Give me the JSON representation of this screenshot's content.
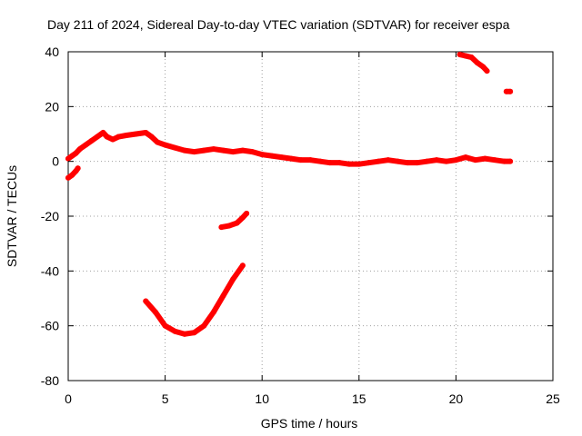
{
  "chart_data": {
    "type": "scatter",
    "title": "Day 211 of 2024, Sidereal Day-to-day VTEC variation (SDTVAR) for receiver espa",
    "xlabel": "GPS time / hours",
    "ylabel": "SDTVAR / TECUs",
    "xlim": [
      0,
      25
    ],
    "ylim": [
      -80,
      40
    ],
    "x_ticks": [
      0,
      5,
      10,
      15,
      20,
      25
    ],
    "y_ticks": [
      -80,
      -60,
      -40,
      -20,
      0,
      20,
      40
    ],
    "x_tick_labels": [
      "0",
      "5",
      "10",
      "15",
      "20",
      "25"
    ],
    "y_tick_labels": [
      "-80",
      "-60",
      "-40",
      "-20",
      "0",
      "20",
      "40"
    ],
    "grid": true,
    "legend": "none",
    "colors": {
      "series": "#ff0000",
      "grid": "#a0a0a0",
      "axis": "#000000"
    },
    "series": [
      {
        "name": "main-trace",
        "points": [
          [
            0.0,
            1.0
          ],
          [
            0.2,
            2.0
          ],
          [
            0.4,
            3.0
          ],
          [
            0.6,
            4.5
          ],
          [
            0.9,
            6.0
          ],
          [
            1.2,
            7.5
          ],
          [
            1.5,
            9.0
          ],
          [
            1.8,
            10.5
          ],
          [
            2.0,
            9.0
          ],
          [
            2.3,
            8.0
          ],
          [
            2.6,
            9.0
          ],
          [
            3.0,
            9.5
          ],
          [
            3.5,
            10.0
          ],
          [
            4.0,
            10.5
          ],
          [
            4.3,
            9.0
          ],
          [
            4.6,
            7.0
          ],
          [
            5.0,
            6.0
          ],
          [
            5.5,
            5.0
          ],
          [
            6.0,
            4.0
          ],
          [
            6.5,
            3.5
          ],
          [
            7.0,
            4.0
          ],
          [
            7.5,
            4.5
          ],
          [
            8.0,
            4.0
          ],
          [
            8.5,
            3.5
          ],
          [
            9.0,
            4.0
          ],
          [
            9.5,
            3.5
          ],
          [
            10.0,
            2.5
          ],
          [
            10.5,
            2.0
          ],
          [
            11.0,
            1.5
          ],
          [
            11.5,
            1.0
          ],
          [
            12.0,
            0.5
          ],
          [
            12.5,
            0.5
          ],
          [
            13.0,
            0.0
          ],
          [
            13.5,
            -0.5
          ],
          [
            14.0,
            -0.5
          ],
          [
            14.5,
            -1.0
          ],
          [
            15.0,
            -1.0
          ],
          [
            15.5,
            -0.5
          ],
          [
            16.0,
            0.0
          ],
          [
            16.5,
            0.5
          ],
          [
            17.0,
            0.0
          ],
          [
            17.5,
            -0.5
          ],
          [
            18.0,
            -0.5
          ],
          [
            18.5,
            0.0
          ],
          [
            19.0,
            0.5
          ],
          [
            19.5,
            0.0
          ],
          [
            20.0,
            0.5
          ],
          [
            20.5,
            1.5
          ],
          [
            21.0,
            0.5
          ],
          [
            21.5,
            1.0
          ],
          [
            22.0,
            0.5
          ],
          [
            22.5,
            0.0
          ],
          [
            22.8,
            0.0
          ]
        ]
      },
      {
        "name": "early-negative-segment",
        "points": [
          [
            0.0,
            -6.0
          ],
          [
            0.2,
            -5.0
          ],
          [
            0.4,
            -3.5
          ],
          [
            0.5,
            -2.5
          ]
        ]
      },
      {
        "name": "deep-arc",
        "points": [
          [
            4.0,
            -51.0
          ],
          [
            4.5,
            -55.0
          ],
          [
            5.0,
            -60.0
          ],
          [
            5.5,
            -62.0
          ],
          [
            6.0,
            -63.0
          ],
          [
            6.5,
            -62.5
          ],
          [
            7.0,
            -60.0
          ],
          [
            7.5,
            -55.0
          ],
          [
            8.0,
            -49.0
          ],
          [
            8.5,
            -43.0
          ],
          [
            9.0,
            -38.0
          ]
        ]
      },
      {
        "name": "mid-negative-segment",
        "points": [
          [
            7.9,
            -24.0
          ],
          [
            8.3,
            -23.5
          ],
          [
            8.7,
            -22.5
          ],
          [
            9.0,
            -20.5
          ],
          [
            9.2,
            -19.0
          ]
        ]
      },
      {
        "name": "late-high-segment",
        "points": [
          [
            20.2,
            39.0
          ],
          [
            20.5,
            38.5
          ],
          [
            20.8,
            38.0
          ],
          [
            21.1,
            36.0
          ],
          [
            21.4,
            34.5
          ],
          [
            21.6,
            33.0
          ]
        ]
      },
      {
        "name": "isolated-point",
        "points": [
          [
            22.6,
            25.5
          ],
          [
            22.8,
            25.5
          ]
        ]
      }
    ]
  }
}
